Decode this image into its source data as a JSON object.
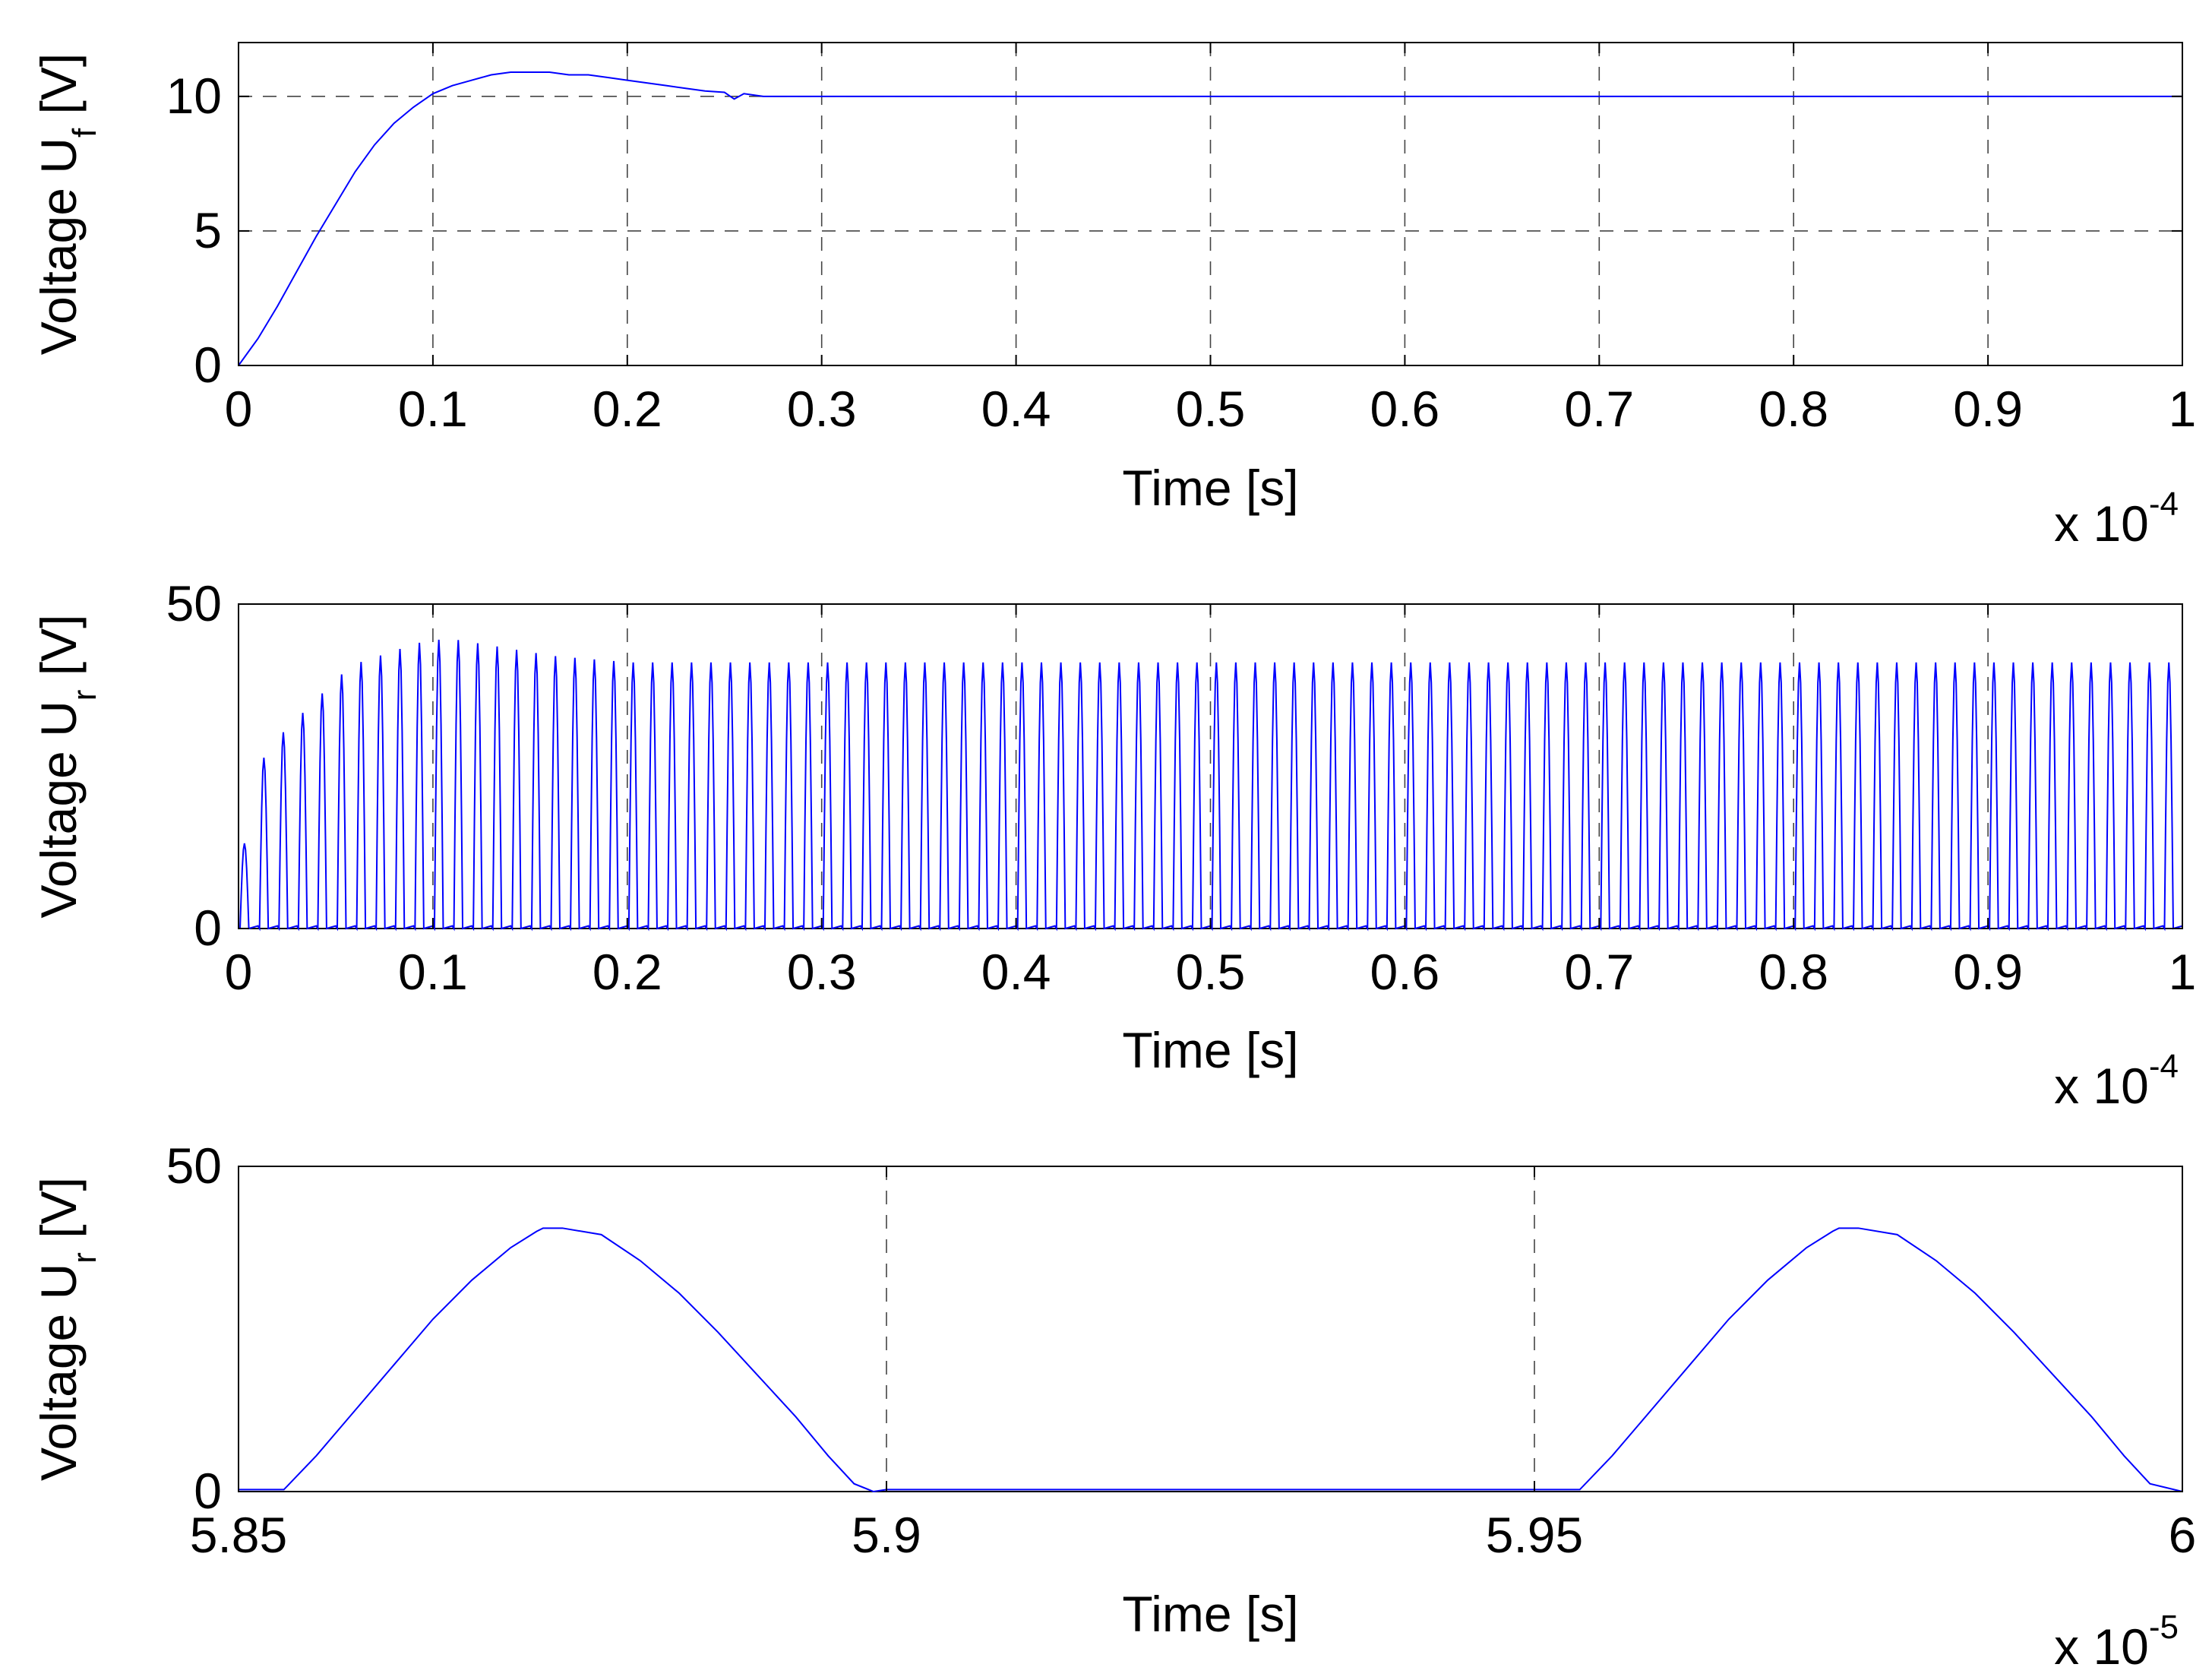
{
  "chart_data": [
    {
      "type": "line",
      "name": "filter-voltage-plot",
      "ylabel_main": "Voltage U",
      "ylabel_sub": "f",
      "ylabel_unit": " [V]",
      "xlabel": "Time [s]",
      "x_exponent_prefix": "x 10",
      "x_exponent": "-4",
      "xlim": [
        0,
        1
      ],
      "ylim": [
        0,
        12
      ],
      "xticks": [
        0,
        0.1,
        0.2,
        0.3,
        0.4,
        0.5,
        0.6,
        0.7,
        0.8,
        0.9,
        1
      ],
      "xtick_labels": [
        "0",
        "0.1",
        "0.2",
        "0.3",
        "0.4",
        "0.5",
        "0.6",
        "0.7",
        "0.8",
        "0.9",
        "1"
      ],
      "yticks": [
        0,
        5,
        10
      ],
      "ytick_labels": [
        "0",
        "5",
        "10"
      ],
      "grid": true,
      "line_color": "#0000ff",
      "series": [
        {
          "name": "U_f",
          "x": [
            0,
            0.01,
            0.02,
            0.03,
            0.04,
            0.05,
            0.06,
            0.07,
            0.08,
            0.09,
            0.1,
            0.11,
            0.12,
            0.13,
            0.14,
            0.15,
            0.16,
            0.17,
            0.18,
            0.19,
            0.2,
            0.21,
            0.22,
            0.23,
            0.24,
            0.25,
            0.255,
            0.26,
            0.27,
            1.0
          ],
          "y": [
            0,
            1.0,
            2.2,
            3.5,
            4.8,
            6.0,
            7.2,
            8.2,
            9.0,
            9.6,
            10.1,
            10.4,
            10.6,
            10.8,
            10.9,
            10.9,
            10.9,
            10.8,
            10.8,
            10.7,
            10.6,
            10.5,
            10.4,
            10.3,
            10.2,
            10.15,
            9.9,
            10.1,
            10.0,
            10.0
          ]
        }
      ]
    },
    {
      "type": "line",
      "name": "rectifier-voltage-plot",
      "ylabel_main": "Voltage U",
      "ylabel_sub": "r",
      "ylabel_unit": " [V]",
      "xlabel": "Time [s]",
      "x_exponent_prefix": "x 10",
      "x_exponent": "-4",
      "xlim": [
        0,
        1
      ],
      "ylim": [
        0,
        50
      ],
      "xticks": [
        0,
        0.1,
        0.2,
        0.3,
        0.4,
        0.5,
        0.6,
        0.7,
        0.8,
        0.9,
        1
      ],
      "xtick_labels": [
        "0",
        "0.1",
        "0.2",
        "0.3",
        "0.4",
        "0.5",
        "0.6",
        "0.7",
        "0.8",
        "0.9",
        "1"
      ],
      "yticks": [
        0,
        50
      ],
      "ytick_labels": [
        "0",
        "50"
      ],
      "grid": true,
      "line_color": "#0000ff",
      "series": [
        {
          "name": "U_r",
          "pulse_period": 0.01,
          "pulse_width": 0.0045,
          "envelope_x": [
            0,
            0.01,
            0.02,
            0.03,
            0.04,
            0.05,
            0.06,
            0.07,
            0.08,
            0.09,
            0.1,
            0.11,
            0.12,
            0.13,
            0.14,
            0.15,
            0.16,
            0.18,
            0.2,
            0.25,
            1.0
          ],
          "envelope_y": [
            12,
            26,
            30,
            33,
            36,
            39,
            41,
            42,
            43,
            44,
            44.5,
            44.5,
            44,
            43.5,
            43,
            42.5,
            42,
            41.5,
            41,
            41,
            41
          ]
        }
      ]
    },
    {
      "type": "line",
      "name": "zoomed-rectifier-voltage-plot",
      "ylabel_main": "Voltage U",
      "ylabel_sub": "r",
      "ylabel_unit": " [V]",
      "xlabel": "Time [s]",
      "x_exponent_prefix": "x 10",
      "x_exponent": "-5",
      "xlim": [
        5.85,
        6.0
      ],
      "ylim": [
        0,
        50
      ],
      "xticks": [
        5.85,
        5.9,
        5.95,
        6.0
      ],
      "xtick_labels": [
        "5.85",
        "5.9",
        "5.95",
        "6"
      ],
      "yticks": [
        0,
        50
      ],
      "ytick_labels": [
        "0",
        "50"
      ],
      "grid": true,
      "line_color": "#0000ff",
      "series": [
        {
          "name": "U_r zoom",
          "x": [
            5.85,
            5.8535,
            5.856,
            5.859,
            5.862,
            5.865,
            5.868,
            5.871,
            5.873,
            5.8735,
            5.875,
            5.878,
            5.881,
            5.884,
            5.887,
            5.89,
            5.893,
            5.8955,
            5.8975,
            5.899,
            5.9,
            5.95,
            5.9535,
            5.956,
            5.959,
            5.962,
            5.965,
            5.968,
            5.971,
            5.973,
            5.9735,
            5.975,
            5.978,
            5.981,
            5.984,
            5.987,
            5.99,
            5.993,
            5.9955,
            5.9975,
            6.0
          ],
          "y": [
            0.3,
            0.3,
            5.5,
            12.5,
            19.5,
            26.5,
            32.5,
            37.5,
            40.0,
            40.5,
            40.5,
            39.5,
            35.5,
            30.5,
            24.5,
            18.0,
            11.5,
            5.5,
            1.2,
            0.0,
            0.3,
            0.3,
            0.3,
            5.5,
            12.5,
            19.5,
            26.5,
            32.5,
            37.5,
            40.0,
            40.5,
            40.5,
            39.5,
            35.5,
            30.5,
            24.5,
            18.0,
            11.5,
            5.5,
            1.2,
            0.0
          ]
        }
      ]
    }
  ]
}
